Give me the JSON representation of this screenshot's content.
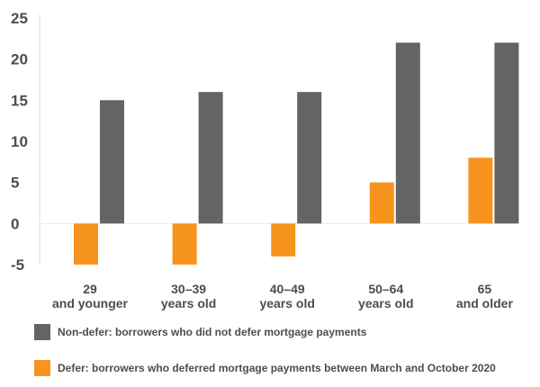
{
  "chart_data": {
    "type": "bar",
    "categories": [
      [
        "29",
        "and younger"
      ],
      [
        "30–39",
        "years old"
      ],
      [
        "40–49",
        "years old"
      ],
      [
        "50–64",
        "years old"
      ],
      [
        "65",
        "and older"
      ]
    ],
    "series": [
      {
        "name": "Defer: borrowers who deferred mortgage payments between March and October 2020",
        "color": "#F7941D",
        "values": [
          -5,
          -5,
          -4,
          5,
          8
        ]
      },
      {
        "name": "Non-defer: borrowers who did not defer mortgage payments",
        "color": "#636466",
        "values": [
          15,
          16,
          16,
          22,
          22
        ]
      }
    ],
    "y_ticks": [
      -5,
      0,
      5,
      10,
      15,
      20,
      25
    ],
    "ylim": [
      -5,
      25
    ],
    "grid": false,
    "legend_placement": "bottom",
    "legend_order": [
      1,
      0
    ]
  }
}
